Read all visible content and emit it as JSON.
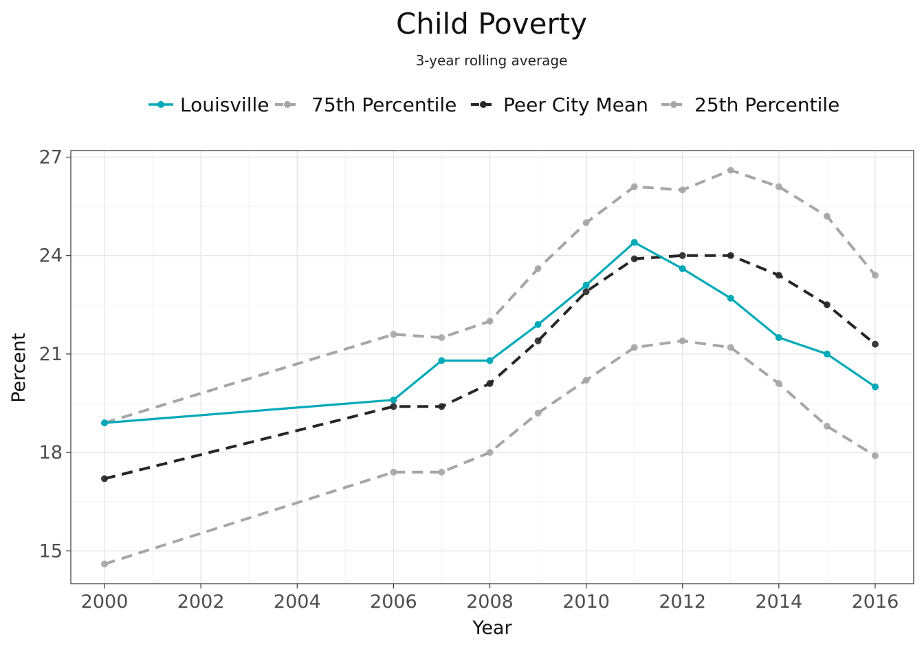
{
  "chart_data": {
    "type": "line",
    "title": "Child Poverty",
    "subtitle": "3-year rolling average",
    "xlabel": "Year",
    "ylabel": "Percent",
    "xlim": [
      1999.3,
      2016.8
    ],
    "ylim": [
      14.0,
      27.2
    ],
    "x_ticks": [
      2000,
      2002,
      2004,
      2006,
      2008,
      2010,
      2012,
      2014,
      2016
    ],
    "y_ticks": [
      15,
      18,
      21,
      24,
      27
    ],
    "grid": true,
    "legend_position": "top",
    "series": [
      {
        "name": "Louisville",
        "color": "#00a9b7",
        "style": "solid",
        "x": [
          2000,
          2006,
          2007,
          2008,
          2009,
          2010,
          2011,
          2012,
          2013,
          2014,
          2015,
          2016
        ],
        "values": [
          18.9,
          19.6,
          20.8,
          20.8,
          21.9,
          23.1,
          24.4,
          23.6,
          22.7,
          21.5,
          21.0,
          20.0
        ]
      },
      {
        "name": "75th Percentile",
        "color": "#a6a6a6",
        "style": "dashed",
        "x": [
          2000,
          2006,
          2007,
          2008,
          2009,
          2010,
          2011,
          2012,
          2013,
          2014,
          2015,
          2016
        ],
        "values": [
          18.9,
          21.6,
          21.5,
          22.0,
          23.6,
          25.0,
          26.1,
          26.0,
          26.6,
          26.1,
          25.2,
          23.4
        ]
      },
      {
        "name": "Peer City Mean",
        "color": "#262626",
        "style": "dashed",
        "x": [
          2000,
          2006,
          2007,
          2008,
          2009,
          2010,
          2011,
          2012,
          2013,
          2014,
          2015,
          2016
        ],
        "values": [
          17.2,
          19.4,
          19.4,
          20.1,
          21.4,
          22.9,
          23.9,
          24.0,
          24.0,
          23.4,
          22.5,
          21.3
        ]
      },
      {
        "name": "25th Percentile",
        "color": "#a6a6a6",
        "style": "dashed",
        "x": [
          2000,
          2006,
          2007,
          2008,
          2009,
          2010,
          2011,
          2012,
          2013,
          2014,
          2015,
          2016
        ],
        "values": [
          14.6,
          17.4,
          17.4,
          18.0,
          19.2,
          20.2,
          21.2,
          21.4,
          21.2,
          20.1,
          18.8,
          17.9
        ]
      }
    ]
  }
}
